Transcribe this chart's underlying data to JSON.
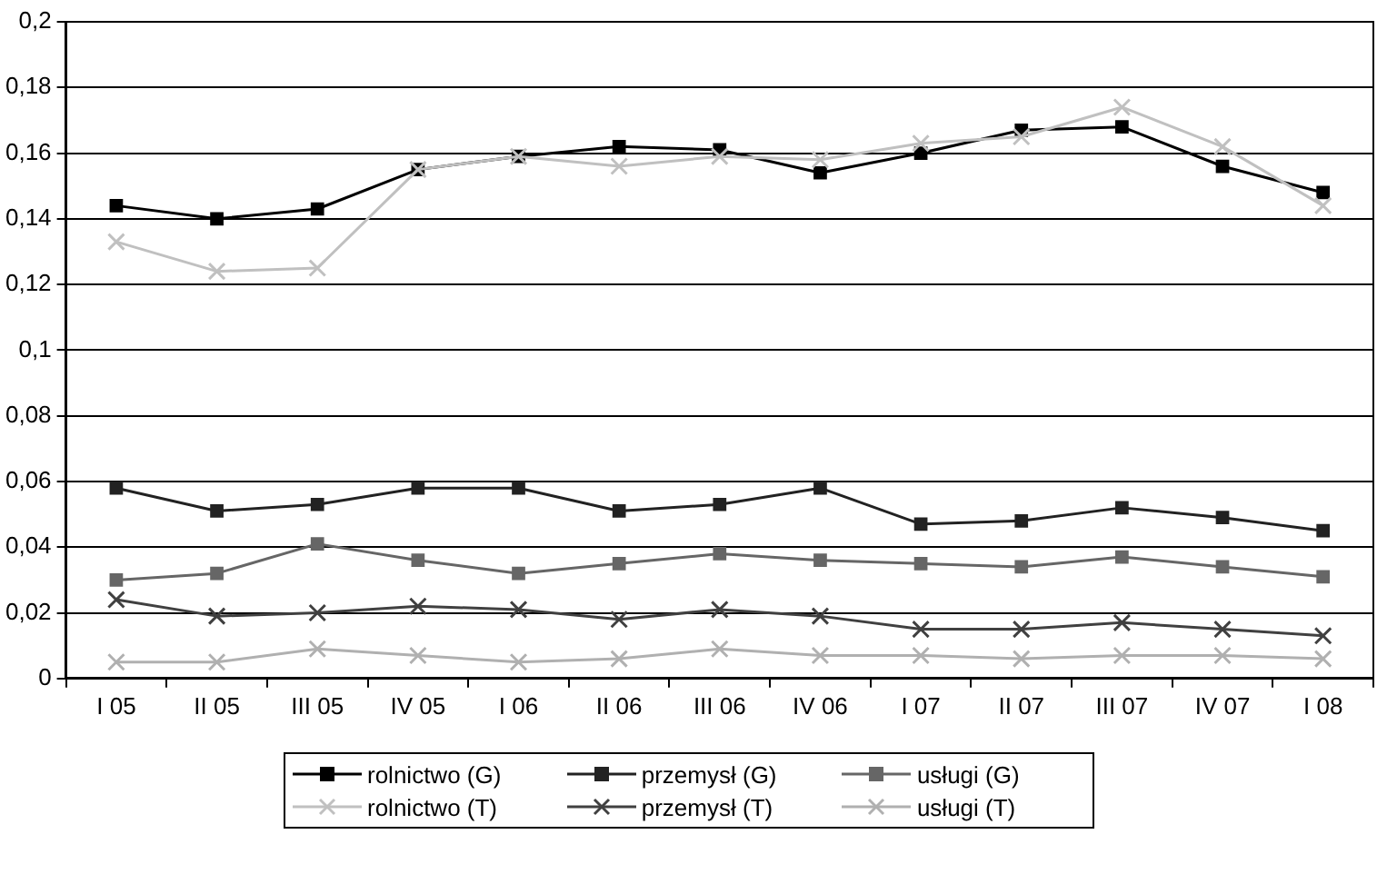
{
  "chart_data": {
    "type": "line",
    "categories": [
      "I 05",
      "II 05",
      "III 05",
      "IV 05",
      "I 06",
      "II 06",
      "III 06",
      "IV 06",
      "I 07",
      "II 07",
      "III 07",
      "IV 07",
      "I 08"
    ],
    "ylim": [
      0,
      0.2
    ],
    "yticks": [
      0,
      {
        "value": 0.02,
        "label": "0,02"
      },
      {
        "value": 0.04,
        "label": "0,04"
      },
      {
        "value": 0.06,
        "label": "0,06"
      },
      {
        "value": 0.08,
        "label": "0,08"
      },
      {
        "value": 0.1,
        "label": "0,1"
      },
      {
        "value": 0.12,
        "label": "0,12"
      },
      {
        "value": 0.14,
        "label": "0,14"
      },
      {
        "value": 0.16,
        "label": "0,16"
      },
      {
        "value": 0.18,
        "label": "0,18"
      },
      {
        "value": 0.2,
        "label": "0,2"
      }
    ],
    "grid": "y",
    "legend": "bottom",
    "line_style": "solid",
    "series": [
      {
        "name": "rolnictwo (G)",
        "color": "#000000",
        "marker": "square",
        "values": [
          0.144,
          0.14,
          0.143,
          0.155,
          0.159,
          0.162,
          0.161,
          0.154,
          0.16,
          0.167,
          0.168,
          0.156,
          0.148
        ]
      },
      {
        "name": "przemysł (G)",
        "color": "#222222",
        "marker": "square",
        "values": [
          0.058,
          0.051,
          0.053,
          0.058,
          0.058,
          0.051,
          0.053,
          0.058,
          0.047,
          0.048,
          0.052,
          0.049,
          0.045
        ]
      },
      {
        "name": "usługi (G)",
        "color": "#666666",
        "marker": "square",
        "values": [
          0.03,
          0.032,
          0.041,
          0.036,
          0.032,
          0.035,
          0.038,
          0.036,
          0.035,
          0.034,
          0.037,
          0.034,
          0.031
        ]
      },
      {
        "name": "rolnictwo (T)",
        "color": "#c0c0c0",
        "marker": "cross",
        "values": [
          0.133,
          0.124,
          0.125,
          0.155,
          0.159,
          0.156,
          0.159,
          0.158,
          0.163,
          0.165,
          0.174,
          0.162,
          0.144
        ]
      },
      {
        "name": "przemysł (T)",
        "color": "#404040",
        "marker": "cross",
        "values": [
          0.024,
          0.019,
          0.02,
          0.022,
          0.021,
          0.018,
          0.021,
          0.019,
          0.015,
          0.015,
          0.017,
          0.015,
          0.013
        ]
      },
      {
        "name": "usługi (T)",
        "color": "#b0b0b0",
        "marker": "cross",
        "values": [
          0.005,
          0.005,
          0.009,
          0.007,
          0.005,
          0.006,
          0.009,
          0.007,
          0.007,
          0.006,
          0.007,
          0.007,
          0.006
        ]
      }
    ]
  }
}
